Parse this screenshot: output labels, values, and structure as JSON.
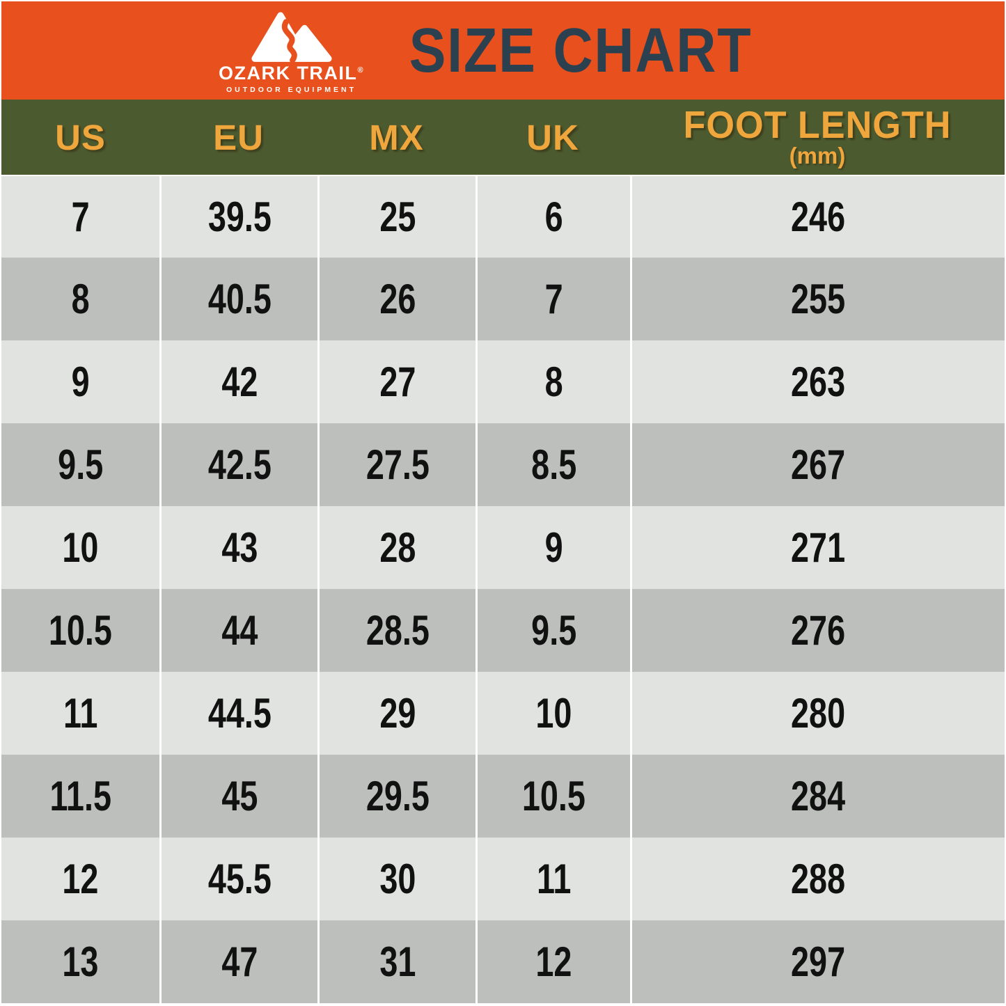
{
  "header": {
    "title": "SIZE CHART",
    "logo": {
      "brand": "OZARK TRAIL",
      "registered": "®",
      "tagline": "OUTDOOR EQUIPMENT"
    }
  },
  "table": {
    "columns": [
      {
        "label": "US"
      },
      {
        "label": "EU"
      },
      {
        "label": "MX"
      },
      {
        "label": "UK"
      },
      {
        "label": "FOOT LENGTH",
        "sublabel": "(mm)"
      }
    ]
  },
  "chart_data": {
    "type": "table",
    "title": "SIZE CHART",
    "columns": [
      "US",
      "EU",
      "MX",
      "UK",
      "FOOT LENGTH (mm)"
    ],
    "rows": [
      [
        "7",
        "39.5",
        "25",
        "6",
        "246"
      ],
      [
        "8",
        "40.5",
        "26",
        "7",
        "255"
      ],
      [
        "9",
        "42",
        "27",
        "8",
        "263"
      ],
      [
        "9.5",
        "42.5",
        "27.5",
        "8.5",
        "267"
      ],
      [
        "10",
        "43",
        "28",
        "9",
        "271"
      ],
      [
        "10.5",
        "44",
        "28.5",
        "9.5",
        "276"
      ],
      [
        "11",
        "44.5",
        "29",
        "10",
        "280"
      ],
      [
        "11.5",
        "45",
        "29.5",
        "10.5",
        "284"
      ],
      [
        "12",
        "45.5",
        "30",
        "11",
        "288"
      ],
      [
        "13",
        "47",
        "31",
        "12",
        "297"
      ]
    ]
  },
  "colors": {
    "banner_orange": "#E8511E",
    "header_olive": "#4C5A30",
    "header_text_gold": "#EFA63C",
    "title_navy": "#2C4150",
    "row_light": "#E1E3E1",
    "row_dark": "#BDBFBD",
    "cell_text": "#111111",
    "separator_white": "#FFFFFF"
  }
}
